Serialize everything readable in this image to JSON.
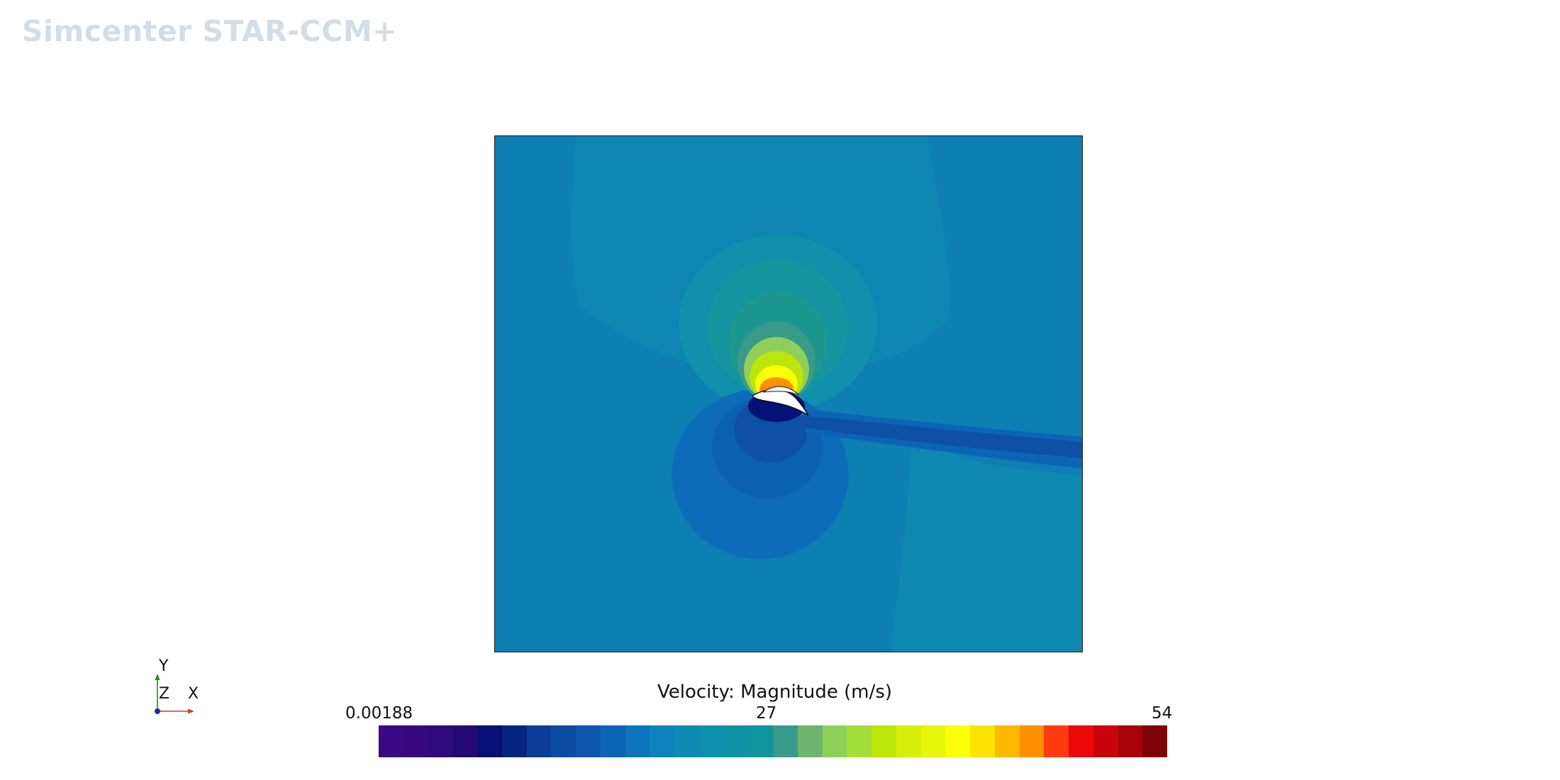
{
  "app": {
    "brand": "Simcenter STAR-CCM+"
  },
  "scene": {
    "contour": "velocity-magnitude",
    "free_stream_color": "#0d7fb3"
  },
  "triad": {
    "y_label": "Y",
    "z_label": "Z",
    "x_label": "X"
  },
  "legend": {
    "title": "Velocity: Magnitude (m/s)",
    "min_label": "0.00188",
    "mid_label": "27",
    "max_label": "54",
    "colors": [
      "#3b0a82",
      "#37097c",
      "#2e0b7a",
      "#260a73",
      "#051174",
      "#06257f",
      "#0b3d94",
      "#0d4ca3",
      "#0c56ae",
      "#0c64b6",
      "#0e74bd",
      "#0e83bb",
      "#0e8bb5",
      "#0e8fae",
      "#0f92a5",
      "#0f959b",
      "#3a9a8a",
      "#6db471",
      "#8fd05a",
      "#a4de3b",
      "#bce509",
      "#d5ee0a",
      "#e8f609",
      "#fcff05",
      "#fde400",
      "#fdb900",
      "#fe8f01",
      "#ff3c0f",
      "#ec0707",
      "#c9040a",
      "#a70209",
      "#7e0206"
    ]
  }
}
